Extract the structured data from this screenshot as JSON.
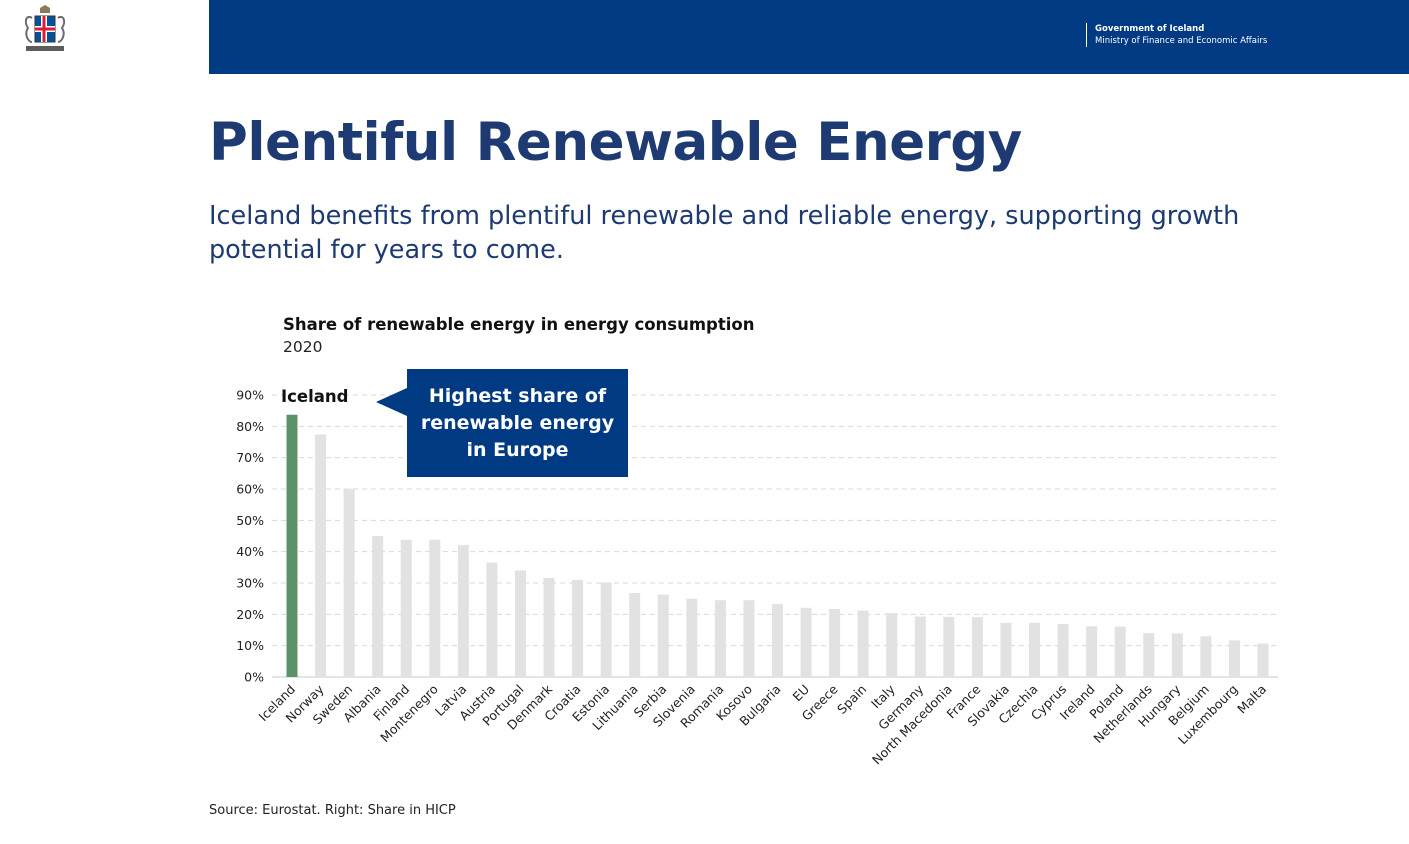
{
  "header": {
    "gov_name": "Government of Iceland",
    "ministry": "Ministry of Finance and Economic Affairs",
    "bar_color": "#003a83",
    "logo_icon": "iceland-coat-of-arms-icon"
  },
  "page": {
    "title": "Plentiful Renewable Energy",
    "subtitle": "Iceland benefits from plentiful renewable and reliable energy, supporting growth potential for years to come.",
    "source": "Source: Eurostat. Right: Share in HICP",
    "title_color": "#1d3a72"
  },
  "callout": {
    "text": "Highest share of renewable energy in Europe",
    "color": "#003a83"
  },
  "chart_data": {
    "type": "bar",
    "title": "Share of renewable energy in energy consumption",
    "subtitle": "2020",
    "categories": [
      "Iceland",
      "Norway",
      "Sweden",
      "Albania",
      "Finland",
      "Montenegro",
      "Latvia",
      "Austria",
      "Portugal",
      "Denmark",
      "Croatia",
      "Estonia",
      "Lithuania",
      "Serbia",
      "Slovenia",
      "Romania",
      "Kosovo",
      "Bulgaria",
      "EU",
      "Greece",
      "Spain",
      "Italy",
      "Germany",
      "North Macedonia",
      "France",
      "Slovakia",
      "Czechia",
      "Cyprus",
      "Ireland",
      "Poland",
      "Netherlands",
      "Hungary",
      "Belgium",
      "Luxembourg",
      "Malta"
    ],
    "values": [
      83.7,
      77.4,
      60.1,
      45.0,
      43.8,
      43.8,
      42.1,
      36.5,
      34.0,
      31.6,
      31.0,
      30.1,
      26.8,
      26.3,
      25.0,
      24.5,
      24.5,
      23.3,
      22.1,
      21.7,
      21.2,
      20.4,
      19.3,
      19.2,
      19.1,
      17.3,
      17.3,
      16.9,
      16.2,
      16.1,
      14.0,
      13.9,
      13.0,
      11.7,
      10.7
    ],
    "highlight": {
      "category": "Iceland",
      "label": "Iceland",
      "color": "#5b9269"
    },
    "bar_color": "#e2e2e2",
    "y_ticks": [
      "0%",
      "10%",
      "20%",
      "30%",
      "40%",
      "50%",
      "60%",
      "70%",
      "80%",
      "90%"
    ],
    "ylim": [
      0,
      90
    ],
    "grid": "horizontal dashed",
    "xlabel": "",
    "ylabel": ""
  }
}
